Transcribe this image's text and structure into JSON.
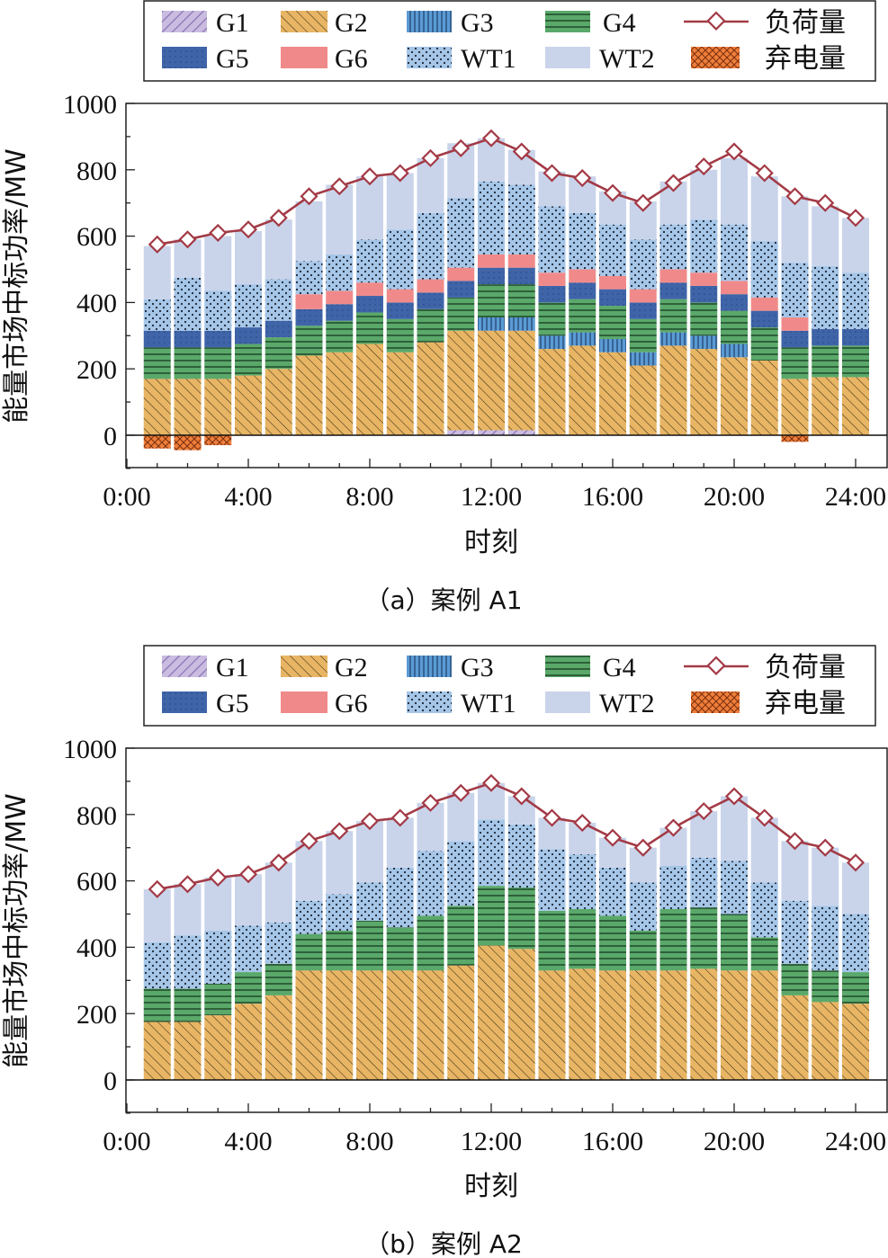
{
  "legend": {
    "items": [
      {
        "key": "G1",
        "label": "G1"
      },
      {
        "key": "G2",
        "label": "G2"
      },
      {
        "key": "G3",
        "label": "G3"
      },
      {
        "key": "G4",
        "label": "G4"
      },
      {
        "key": "load",
        "label": "负荷量"
      },
      {
        "key": "G5",
        "label": "G5"
      },
      {
        "key": "G6",
        "label": "G6"
      },
      {
        "key": "WT1",
        "label": "WT1"
      },
      {
        "key": "WT2",
        "label": "WT2"
      },
      {
        "key": "curtail",
        "label": "弃电量"
      }
    ]
  },
  "colors": {
    "G1": "#b7a7d3",
    "G2": "#e8b564",
    "G3": "#5b9bd5",
    "G4": "#5aa86a",
    "G5": "#3f64a8",
    "G6": "#f08a8a",
    "WT1": "#a6c6e8",
    "WT2": "#c9d4ea",
    "curtail": "#ef7e3b",
    "load": "#a33a46"
  },
  "chart_data": [
    {
      "type": "bar",
      "stacked": true,
      "caption": "（a）案例 A1",
      "xlabel": "时刻",
      "ylabel": "能量市场中标功率/MW",
      "xticks": [
        "0:00",
        "4:00",
        "8:00",
        "12:00",
        "16:00",
        "20:00",
        "24:00"
      ],
      "yticks": [
        "0",
        "200",
        "400",
        "600",
        "800",
        "1000"
      ],
      "ylim": [
        -100,
        1000
      ],
      "hours": [
        1,
        2,
        3,
        4,
        5,
        6,
        7,
        8,
        9,
        10,
        11,
        12,
        13,
        14,
        15,
        16,
        17,
        18,
        19,
        20,
        21,
        22,
        23,
        24
      ],
      "series": [
        {
          "key": "G1",
          "values": [
            0,
            0,
            0,
            0,
            0,
            0,
            0,
            0,
            0,
            0,
            15,
            15,
            15,
            0,
            0,
            0,
            0,
            0,
            0,
            0,
            0,
            0,
            0,
            0
          ]
        },
        {
          "key": "G2",
          "values": [
            170,
            170,
            170,
            180,
            200,
            240,
            250,
            275,
            250,
            280,
            300,
            300,
            300,
            260,
            270,
            250,
            210,
            270,
            260,
            235,
            225,
            170,
            175,
            175
          ]
        },
        {
          "key": "G3",
          "values": [
            0,
            0,
            0,
            0,
            0,
            0,
            0,
            0,
            0,
            0,
            0,
            40,
            40,
            40,
            40,
            40,
            40,
            40,
            40,
            40,
            0,
            0,
            0,
            0
          ]
        },
        {
          "key": "G4",
          "values": [
            95,
            95,
            95,
            95,
            95,
            90,
            95,
            95,
            100,
            100,
            100,
            100,
            100,
            100,
            100,
            100,
            100,
            100,
            100,
            100,
            100,
            95,
            95,
            95
          ]
        },
        {
          "key": "G5",
          "values": [
            50,
            50,
            50,
            50,
            50,
            50,
            50,
            50,
            50,
            50,
            50,
            50,
            50,
            50,
            50,
            50,
            50,
            50,
            50,
            50,
            50,
            50,
            50,
            50
          ]
        },
        {
          "key": "G6",
          "values": [
            0,
            0,
            0,
            0,
            0,
            45,
            40,
            40,
            40,
            40,
            40,
            40,
            40,
            40,
            40,
            40,
            40,
            40,
            40,
            40,
            40,
            40,
            0,
            0
          ]
        },
        {
          "key": "WT1",
          "values": [
            95,
            160,
            120,
            130,
            125,
            100,
            110,
            130,
            180,
            200,
            210,
            220,
            210,
            200,
            170,
            155,
            150,
            135,
            160,
            170,
            170,
            165,
            190,
            170
          ]
        },
        {
          "key": "WT2",
          "values": [
            160,
            115,
            165,
            160,
            180,
            180,
            210,
            190,
            170,
            165,
            165,
            130,
            105,
            105,
            110,
            100,
            115,
            130,
            150,
            200,
            195,
            200,
            180,
            165
          ]
        }
      ],
      "curtailment": [
        -40,
        -45,
        -30,
        0,
        0,
        0,
        0,
        0,
        0,
        0,
        0,
        0,
        0,
        0,
        0,
        0,
        0,
        0,
        0,
        0,
        0,
        -20,
        0,
        0
      ],
      "load": [
        575,
        590,
        610,
        620,
        655,
        720,
        750,
        780,
        790,
        835,
        865,
        895,
        855,
        790,
        775,
        730,
        700,
        760,
        810,
        855,
        790,
        720,
        700,
        655
      ]
    },
    {
      "type": "bar",
      "stacked": true,
      "caption": "（b）案例 A2",
      "xlabel": "时刻",
      "ylabel": "能量市场中标功率/MW",
      "xticks": [
        "0:00",
        "4:00",
        "8:00",
        "12:00",
        "16:00",
        "20:00",
        "24:00"
      ],
      "yticks": [
        "0",
        "200",
        "400",
        "600",
        "800",
        "1000"
      ],
      "ylim": [
        -100,
        1000
      ],
      "hours": [
        1,
        2,
        3,
        4,
        5,
        6,
        7,
        8,
        9,
        10,
        11,
        12,
        13,
        14,
        15,
        16,
        17,
        18,
        19,
        20,
        21,
        22,
        23,
        24
      ],
      "series": [
        {
          "key": "G1",
          "values": [
            0,
            0,
            0,
            0,
            0,
            0,
            0,
            0,
            0,
            0,
            0,
            0,
            0,
            0,
            0,
            0,
            0,
            0,
            0,
            0,
            0,
            0,
            0,
            0
          ]
        },
        {
          "key": "G2",
          "values": [
            175,
            175,
            195,
            230,
            255,
            330,
            330,
            330,
            330,
            330,
            345,
            405,
            395,
            330,
            335,
            330,
            330,
            330,
            335,
            330,
            330,
            255,
            235,
            230
          ]
        },
        {
          "key": "G3",
          "values": [
            0,
            0,
            0,
            0,
            0,
            0,
            0,
            0,
            0,
            0,
            0,
            0,
            0,
            0,
            0,
            0,
            0,
            0,
            0,
            0,
            0,
            0,
            0,
            0
          ]
        },
        {
          "key": "G4",
          "values": [
            100,
            100,
            95,
            95,
            95,
            110,
            120,
            150,
            130,
            165,
            180,
            180,
            185,
            180,
            180,
            165,
            120,
            185,
            185,
            170,
            100,
            95,
            95,
            95
          ]
        },
        {
          "key": "G5",
          "values": [
            0,
            0,
            0,
            0,
            0,
            0,
            0,
            0,
            0,
            0,
            0,
            0,
            0,
            0,
            0,
            0,
            0,
            0,
            0,
            0,
            0,
            0,
            0,
            0
          ]
        },
        {
          "key": "G6",
          "values": [
            0,
            0,
            0,
            0,
            0,
            0,
            0,
            0,
            0,
            0,
            0,
            0,
            0,
            0,
            0,
            0,
            0,
            0,
            0,
            0,
            0,
            0,
            0,
            0
          ]
        },
        {
          "key": "WT1",
          "values": [
            140,
            160,
            160,
            140,
            125,
            100,
            110,
            115,
            180,
            195,
            195,
            200,
            190,
            185,
            165,
            145,
            145,
            130,
            150,
            160,
            165,
            190,
            195,
            175
          ]
        },
        {
          "key": "WT2",
          "values": [
            160,
            155,
            160,
            155,
            180,
            180,
            190,
            185,
            150,
            145,
            145,
            110,
            85,
            95,
            95,
            90,
            105,
            115,
            140,
            195,
            195,
            180,
            175,
            155
          ]
        }
      ],
      "curtailment": [
        0,
        0,
        0,
        0,
        0,
        0,
        0,
        0,
        0,
        0,
        0,
        0,
        0,
        0,
        0,
        0,
        0,
        0,
        0,
        0,
        0,
        0,
        0,
        0
      ],
      "load": [
        575,
        590,
        610,
        620,
        655,
        720,
        750,
        780,
        790,
        835,
        865,
        895,
        855,
        790,
        775,
        730,
        700,
        760,
        810,
        855,
        790,
        720,
        700,
        655
      ]
    }
  ]
}
